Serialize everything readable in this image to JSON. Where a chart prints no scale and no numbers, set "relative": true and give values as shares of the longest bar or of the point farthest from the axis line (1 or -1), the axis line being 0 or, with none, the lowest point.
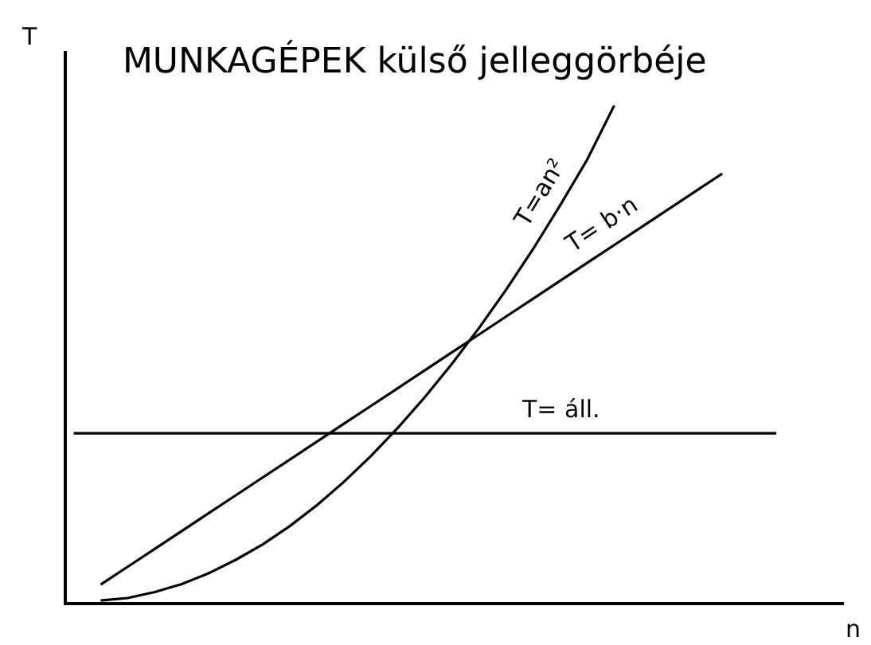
{
  "chart_data": {
    "type": "line",
    "title": "MUNKAGÉPEK külső jelleggörbéje",
    "xlabel": "n",
    "ylabel": "T",
    "relative": true,
    "legend": false,
    "marker": "none",
    "line_style": "solid",
    "categories": [
      null,
      null,
      null,
      null,
      null,
      null,
      null,
      null,
      null,
      null,
      null,
      null,
      null,
      null,
      null,
      null,
      null,
      null,
      null,
      null,
      null,
      null,
      null,
      null,
      null,
      null,
      null,
      null
    ],
    "series": [
      {
        "name": "T=an²",
        "color": "#000000",
        "values": [
          null,
          0.003,
          0.008,
          0.02,
          0.036,
          0.058,
          0.085,
          0.116,
          0.153,
          0.195,
          0.242,
          0.294,
          0.351,
          0.413,
          0.48,
          0.552,
          0.629,
          0.711,
          0.799,
          0.891,
          1.0,
          null,
          null,
          null,
          null,
          null,
          null,
          null
        ]
      },
      {
        "name": "T= b·n",
        "color": "#000000",
        "values": [
          null,
          0.035,
          0.071,
          0.107,
          0.143,
          0.179,
          0.215,
          0.251,
          0.287,
          0.323,
          0.359,
          0.395,
          0.431,
          0.467,
          0.503,
          0.539,
          0.575,
          0.611,
          0.647,
          0.683,
          0.719,
          0.755,
          0.791,
          0.827,
          0.863,
          null,
          null,
          null
        ]
      },
      {
        "name": "T= áll.",
        "color": "#000000",
        "values": [
          0.34,
          0.34,
          0.34,
          0.34,
          0.34,
          0.34,
          0.34,
          0.34,
          0.34,
          0.34,
          0.34,
          0.34,
          0.34,
          0.34,
          0.34,
          0.34,
          0.34,
          0.34,
          0.34,
          0.34,
          0.34,
          0.34,
          0.34,
          0.34,
          0.34,
          0.34,
          0.34,
          null
        ]
      }
    ]
  }
}
